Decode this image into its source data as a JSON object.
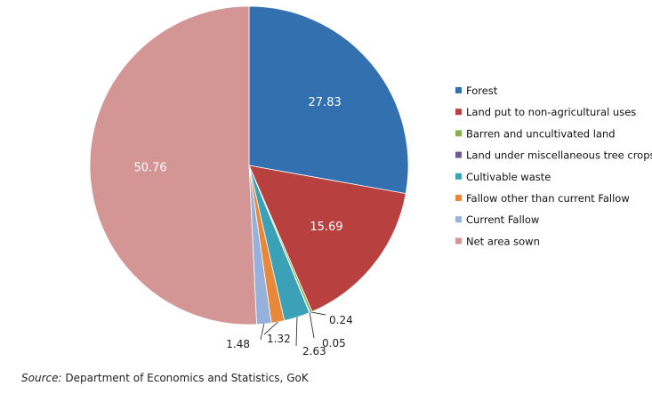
{
  "chart_data": {
    "type": "pie",
    "title": "",
    "categories": [
      "Forest",
      "Land put to non-agricultural uses",
      "Barren and uncultivated land",
      "Land under miscellaneous tree crops",
      "Cultivable waste",
      "Fallow other than current Fallow",
      "Current Fallow",
      "Net area sown"
    ],
    "values": [
      27.83,
      15.69,
      0.24,
      0.05,
      2.63,
      1.32,
      1.48,
      50.76
    ],
    "labels": [
      "27.83",
      "15.69",
      "0.24",
      "0.05",
      "2.63",
      "1.32",
      "1.48",
      "50.76"
    ],
    "colors": [
      "#3370AF",
      "#B84140",
      "#8AB14E",
      "#6F5896",
      "#3AA1B7",
      "#E8883A",
      "#96B2DC",
      "#D49595"
    ],
    "legend_position": "right"
  },
  "source": {
    "prefix": "Source:",
    "text": " Department of Economics and Statistics, GoK"
  }
}
